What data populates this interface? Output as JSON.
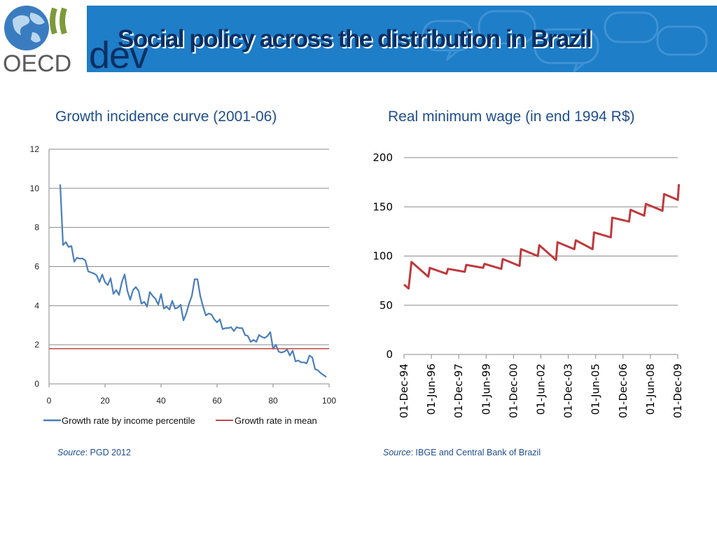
{
  "header": {
    "title": "Social policy across the distribution in Brazil",
    "logo_text": "OECD",
    "dev_text": "dev"
  },
  "colors": {
    "banner": "#1e7ec8",
    "title": "#0b2f63",
    "line_blue": "#4a7ebb",
    "line_red": "#be4b48",
    "wage_line": "#be3a3d"
  },
  "chart_titles": {
    "left": "Growth incidence curve (2001-06)",
    "right": "Real minimum wage (in end 1994 R$)"
  },
  "sources": {
    "left_label": "Source",
    "left_text": ": PGD 2012",
    "right_label": "Source",
    "right_text": ": IBGE and Central Bank of Brazil"
  },
  "chart_data": [
    {
      "type": "line",
      "title": "Growth incidence curve (2001-06)",
      "xlabel": "",
      "ylabel": "",
      "xlim": [
        0,
        100
      ],
      "ylim": [
        0,
        12
      ],
      "xticks": [
        "0",
        "20",
        "40",
        "60",
        "80",
        "100"
      ],
      "yticks": [
        "0",
        "2",
        "4",
        "6",
        "8",
        "10",
        "12"
      ],
      "grid": true,
      "legend_position": "bottom",
      "series": [
        {
          "name": "Growth rate by income percentile",
          "x": [
            4,
            5,
            6,
            7,
            8,
            9,
            10,
            11,
            12,
            13,
            14,
            15,
            16,
            17,
            18,
            19,
            20,
            21,
            22,
            23,
            24,
            25,
            26,
            27,
            28,
            29,
            30,
            31,
            32,
            33,
            34,
            35,
            36,
            37,
            38,
            39,
            40,
            41,
            42,
            43,
            44,
            45,
            46,
            47,
            48,
            49,
            50,
            51,
            52,
            53,
            54,
            55,
            56,
            57,
            58,
            59,
            60,
            61,
            62,
            63,
            64,
            65,
            66,
            67,
            68,
            69,
            70,
            71,
            72,
            73,
            74,
            75,
            76,
            77,
            78,
            79,
            80,
            81,
            82,
            83,
            84,
            85,
            86,
            87,
            88,
            89,
            90,
            91,
            92,
            93,
            94,
            95,
            96,
            97,
            98,
            99
          ],
          "values": [
            10.2,
            7.1,
            7.25,
            7.0,
            7.05,
            6.25,
            6.45,
            6.4,
            6.42,
            6.3,
            5.75,
            5.7,
            5.65,
            5.55,
            5.2,
            5.6,
            5.2,
            5.05,
            5.4,
            4.6,
            4.8,
            4.55,
            5.2,
            5.6,
            4.75,
            4.3,
            4.8,
            4.95,
            4.75,
            4.1,
            4.2,
            3.95,
            4.7,
            4.5,
            4.35,
            4.05,
            4.6,
            3.85,
            3.95,
            3.8,
            4.25,
            3.85,
            3.9,
            4.05,
            3.25,
            3.6,
            4.1,
            4.5,
            5.35,
            5.35,
            4.5,
            3.95,
            3.5,
            3.6,
            3.55,
            3.3,
            3.15,
            3.3,
            2.8,
            2.85,
            2.85,
            2.9,
            2.7,
            2.9,
            2.85,
            2.85,
            2.5,
            2.45,
            2.15,
            2.25,
            2.15,
            2.5,
            2.4,
            2.35,
            2.45,
            2.65,
            1.8,
            2.0,
            1.65,
            1.6,
            1.65,
            1.75,
            1.45,
            1.7,
            1.15,
            1.2,
            1.1,
            1.1,
            1.05,
            1.45,
            1.35,
            0.75,
            0.7,
            0.55,
            0.45,
            0.35
          ]
        },
        {
          "name": "Growth rate in mean",
          "x": [
            0,
            100
          ],
          "values": [
            1.8,
            1.8
          ]
        }
      ]
    },
    {
      "type": "line",
      "title": "Real minimum wage (in end 1994 R$)",
      "xlabel": "",
      "ylabel": "",
      "ylim": [
        0,
        200
      ],
      "yticks": [
        "0",
        "50",
        "100",
        "150",
        "200"
      ],
      "xticks": [
        "01-Dec-94",
        "01-Jun-96",
        "01-Dec-97",
        "01-Jun-99",
        "01-Dec-00",
        "01-Jun-02",
        "01-Dec-03",
        "01-Jun-05",
        "01-Dec-06",
        "01-Jun-08",
        "01-Dec-09"
      ],
      "grid": true,
      "series": [
        {
          "name": "Real minimum wage",
          "t": [
            1994.92,
            1995.17,
            1995.33,
            1996.25,
            1996.33,
            1997.25,
            1997.33,
            1998.25,
            1998.33,
            1999.25,
            1999.33,
            2000.25,
            2000.33,
            2001.25,
            2001.33,
            2002.25,
            2002.33,
            2003.25,
            2003.33,
            2004.25,
            2004.33,
            2005.25,
            2005.33,
            2006.25,
            2006.33,
            2007.25,
            2007.33,
            2008.08,
            2008.17,
            2009.08,
            2009.17,
            2009.92,
            2009.98
          ],
          "values": [
            71,
            67,
            94,
            79,
            88,
            82,
            87,
            84,
            91,
            88,
            92,
            87,
            97,
            90,
            107,
            100,
            111,
            96,
            114,
            107,
            116,
            107,
            124,
            119,
            139,
            135,
            147,
            141,
            153,
            146,
            163,
            157,
            173
          ]
        }
      ]
    }
  ]
}
